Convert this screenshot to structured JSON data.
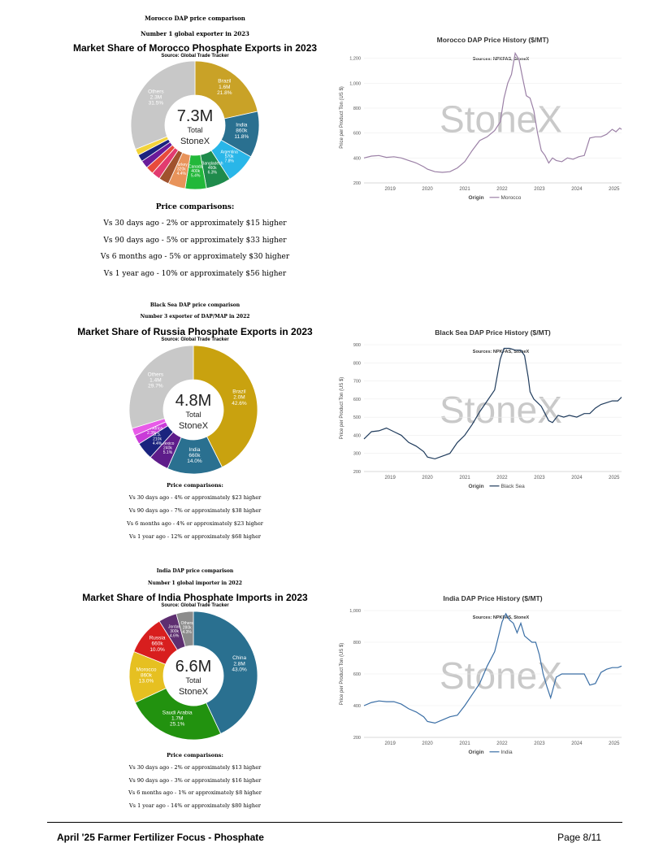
{
  "sections": [
    {
      "heading": "Morocco DAP price comparison",
      "subheading": "Number 1 global exporter in 2023",
      "comparisons_title": "Price comparisons:",
      "comparisons": [
        "Vs 30 days ago - 2% or approximately $15 higher",
        "Vs 90 days ago - 5% or approximately $33 higher",
        "Vs 6 months ago - 5% or approximately $30 higher",
        "Vs 1 year ago - 10% or approximately $56 higher"
      ]
    },
    {
      "heading": "Black Sea DAP price comparison",
      "subheading": "Number 3 exporter of DAP/MAP in 2022",
      "comparisons_title": "Price comparisons:",
      "comparisons": [
        "Vs 30 days ago - 4% or approximately $23 higher",
        "Vs 90 days ago - 7% or approximately $38 higher",
        "Vs 6 months ago - 4% or approximately $23 higher",
        "Vs 1 year ago - 12% or approximately $68 higher"
      ]
    },
    {
      "heading": "India DAP price comparison",
      "subheading": "Number 1 global importer in 2022",
      "comparisons_title": "Price comparisons:",
      "comparisons": [
        "Vs 30 days ago - 2% or approximately $13 higher",
        "Vs 90 days ago - 3% or approximately $16 higher",
        "Vs 6 months ago - 1% or approximately $8 higher",
        "Vs 1 year ago - 14% or approximately $80 higher"
      ]
    }
  ],
  "chart_data": [
    {
      "type": "pie",
      "title": "Market Share of Morocco Phosphate Exports in 2023",
      "subtitle": "Source: Global Trade Tracker",
      "center_value": "7.3M",
      "center_label": "Total",
      "center_brand": "StoneX",
      "slices": [
        {
          "name": "Brazil",
          "value": "1.6M",
          "percent": 21.8,
          "color": "#C9A227",
          "label_color": "#ffffff"
        },
        {
          "name": "India",
          "value": "860k",
          "percent": 11.8,
          "color": "#2A7090",
          "label_color": "#ffffff"
        },
        {
          "name": "Argentina",
          "value": "570k",
          "percent": 7.8,
          "color": "#29B6E8",
          "label_color": "#ffffff"
        },
        {
          "name": "Bangladesh",
          "value": "460k",
          "percent": 6.3,
          "color": "#1F8B4C",
          "label_color": "#ffffff"
        },
        {
          "name": "Canada",
          "value": "400k",
          "percent": 5.4,
          "color": "#22B83A",
          "label_color": "#ffffff"
        },
        {
          "name": "Turkey",
          "value": "320k",
          "percent": 4.4,
          "color": "#E8935A",
          "label_color": "#ffffff"
        },
        {
          "name": "",
          "value": "",
          "percent": 2.6,
          "color": "#A0522D",
          "label_color": "#ffffff"
        },
        {
          "name": "",
          "value": "",
          "percent": 2.2,
          "color": "#E23B6F",
          "label_color": "#ffffff"
        },
        {
          "name": "",
          "value": "",
          "percent": 2.0,
          "color": "#E84A3C",
          "label_color": "#ffffff"
        },
        {
          "name": "",
          "value": "",
          "percent": 2.0,
          "color": "#6A1B9A",
          "label_color": "#ffffff"
        },
        {
          "name": "",
          "value": "",
          "percent": 1.8,
          "color": "#1A237E",
          "label_color": "#ffffff"
        },
        {
          "name": "",
          "value": "",
          "percent": 1.6,
          "color": "#F2D33B",
          "label_color": "#ffffff"
        },
        {
          "name": "Others",
          "value": "2.3M",
          "percent": 31.5,
          "color": "#C8C8C8",
          "label_color": "#ffffff"
        }
      ]
    },
    {
      "type": "line",
      "title": "Morocco DAP Price History ($/MT)",
      "sources": "Sources: NPKFAS, StoneX",
      "ylabel": "Price per Product Ton (US $)",
      "xlabel": "Origin",
      "series_name": "Morocco",
      "color": "#9B80A6",
      "xlim": [
        2018.3,
        2025.2
      ],
      "ylim": [
        200,
        1250
      ],
      "yticks": [
        200,
        400,
        600,
        800,
        1000,
        1200
      ],
      "ytick_labels": [
        "200",
        "400",
        "600",
        "800",
        "1,000",
        "1,200"
      ],
      "xticks": [
        2019,
        2020,
        2021,
        2022,
        2023,
        2024,
        2025
      ],
      "x": [
        2018.3,
        2018.5,
        2018.7,
        2018.9,
        2019.1,
        2019.3,
        2019.5,
        2019.7,
        2019.9,
        2020.0,
        2020.2,
        2020.4,
        2020.6,
        2020.8,
        2021.0,
        2021.2,
        2021.4,
        2021.6,
        2021.8,
        2021.95,
        2022.05,
        2022.15,
        2022.25,
        2022.35,
        2022.45,
        2022.55,
        2022.65,
        2022.75,
        2022.85,
        2022.95,
        2023.05,
        2023.15,
        2023.25,
        2023.35,
        2023.45,
        2023.6,
        2023.75,
        2023.9,
        2024.05,
        2024.2,
        2024.35,
        2024.5,
        2024.65,
        2024.8,
        2024.95,
        2025.05,
        2025.15,
        2025.2
      ],
      "y": [
        400,
        415,
        420,
        405,
        410,
        400,
        380,
        360,
        330,
        310,
        290,
        285,
        290,
        320,
        370,
        460,
        540,
        570,
        620,
        690,
        880,
        1000,
        1070,
        1240,
        1190,
        1040,
        900,
        880,
        780,
        600,
        460,
        420,
        360,
        400,
        380,
        370,
        400,
        390,
        410,
        420,
        560,
        570,
        570,
        590,
        630,
        610,
        640,
        630
      ]
    },
    {
      "type": "pie",
      "title": "Market Share of Russia Phosphate Exports in 2023",
      "subtitle": "Source: Global Trade Tracker",
      "center_value": "4.8M",
      "center_label": "Total",
      "center_brand": "StoneX",
      "slices": [
        {
          "name": "Brazil",
          "value": "2.0M",
          "percent": 42.6,
          "color": "#C9A20F",
          "label_color": "#ffffff"
        },
        {
          "name": "India",
          "value": "660k",
          "percent": 14.0,
          "color": "#2A7090",
          "label_color": "#ffffff"
        },
        {
          "name": "Mexico",
          "value": "240k",
          "percent": 5.1,
          "color": "#5E1C8A",
          "label_color": "#ffffff"
        },
        {
          "name": "U.S.",
          "value": "210k",
          "percent": 4.4,
          "color": "#1A237E",
          "label_color": "#ffffff"
        },
        {
          "name": "South Africa",
          "value": "",
          "percent": 2.3,
          "color": "#C93BD8",
          "label_color": "#ffffff"
        },
        {
          "name": "",
          "value": "",
          "percent": 1.9,
          "color": "#E85AE8",
          "label_color": "#ffffff"
        },
        {
          "name": "Others",
          "value": "1.4M",
          "percent": 29.7,
          "color": "#C8C8C8",
          "label_color": "#ffffff"
        }
      ]
    },
    {
      "type": "line",
      "title": "Black Sea DAP Price History ($/MT)",
      "sources": "Sources: NPKFAS, StoneX",
      "ylabel": "Price per Product Ton (US $)",
      "xlabel": "Origin",
      "series_name": "Black Sea",
      "color": "#1F3B5C",
      "xlim": [
        2018.3,
        2025.2
      ],
      "ylim": [
        200,
        900
      ],
      "yticks": [
        200,
        300,
        400,
        500,
        600,
        700,
        800,
        900
      ],
      "ytick_labels": [
        "200",
        "300",
        "400",
        "500",
        "600",
        "700",
        "800",
        "900"
      ],
      "xticks": [
        2019,
        2020,
        2021,
        2022,
        2023,
        2024,
        2025
      ],
      "x": [
        2018.3,
        2018.5,
        2018.7,
        2018.9,
        2019.1,
        2019.3,
        2019.5,
        2019.7,
        2019.9,
        2020.0,
        2020.2,
        2020.4,
        2020.6,
        2020.8,
        2021.0,
        2021.2,
        2021.4,
        2021.6,
        2021.8,
        2021.95,
        2022.05,
        2022.2,
        2022.35,
        2022.5,
        2022.6,
        2022.7,
        2022.75,
        2022.85,
        2022.95,
        2023.05,
        2023.15,
        2023.25,
        2023.35,
        2023.5,
        2023.65,
        2023.8,
        2024.0,
        2024.2,
        2024.35,
        2024.5,
        2024.65,
        2024.8,
        2024.95,
        2025.1,
        2025.2
      ],
      "y": [
        380,
        420,
        425,
        440,
        420,
        400,
        360,
        340,
        310,
        280,
        270,
        285,
        300,
        360,
        400,
        460,
        530,
        590,
        650,
        820,
        880,
        880,
        870,
        870,
        840,
        720,
        640,
        600,
        580,
        560,
        520,
        480,
        470,
        510,
        500,
        510,
        500,
        520,
        520,
        550,
        570,
        580,
        590,
        590,
        610
      ]
    },
    {
      "type": "pie",
      "title": "Market Share of India Phosphate Imports in 2023",
      "subtitle": "Source: Global Trade Tracker",
      "center_value": "6.6M",
      "center_label": "Total",
      "center_brand": "StoneX",
      "slices": [
        {
          "name": "China",
          "value": "2.8M",
          "percent": 43.0,
          "color": "#2A7090",
          "label_color": "#ffffff"
        },
        {
          "name": "Saudi Arabia",
          "value": "1.7M",
          "percent": 25.1,
          "color": "#22920F",
          "label_color": "#ffffff"
        },
        {
          "name": "Morocco",
          "value": "860k",
          "percent": 13.0,
          "color": "#E6C021",
          "label_color": "#ffffff"
        },
        {
          "name": "Russia",
          "value": "660k",
          "percent": 10.0,
          "color": "#D81E1E",
          "label_color": "#ffffff"
        },
        {
          "name": "Jordan",
          "value": "300k",
          "percent": 4.6,
          "color": "#5E2E70",
          "label_color": "#ffffff"
        },
        {
          "name": "Others",
          "value": "280k",
          "percent": 4.3,
          "color": "#8C8C8C",
          "label_color": "#ffffff"
        }
      ]
    },
    {
      "type": "line",
      "title": "India DAP Price History ($/MT)",
      "sources": "Sources: NPKFAS, StoneX",
      "ylabel": "Price per Product Ton (US $)",
      "xlabel": "Origin",
      "series_name": "India",
      "color": "#3A6EA5",
      "xlim": [
        2018.3,
        2025.2
      ],
      "ylim": [
        200,
        1000
      ],
      "yticks": [
        200,
        400,
        600,
        800,
        1000
      ],
      "ytick_labels": [
        "200",
        "400",
        "600",
        "800",
        "1,000"
      ],
      "xticks": [
        2019,
        2020,
        2021,
        2022,
        2023,
        2024,
        2025
      ],
      "x": [
        2018.3,
        2018.5,
        2018.7,
        2018.9,
        2019.1,
        2019.3,
        2019.5,
        2019.7,
        2019.9,
        2020.0,
        2020.2,
        2020.4,
        2020.6,
        2020.8,
        2021.0,
        2021.2,
        2021.4,
        2021.6,
        2021.8,
        2022.0,
        2022.1,
        2022.2,
        2022.3,
        2022.4,
        2022.5,
        2022.6,
        2022.7,
        2022.8,
        2022.9,
        2023.0,
        2023.1,
        2023.2,
        2023.3,
        2023.45,
        2023.6,
        2023.8,
        2024.0,
        2024.2,
        2024.35,
        2024.5,
        2024.65,
        2024.8,
        2024.95,
        2025.1,
        2025.2
      ],
      "y": [
        400,
        420,
        430,
        425,
        425,
        410,
        380,
        360,
        330,
        300,
        290,
        310,
        330,
        340,
        400,
        470,
        540,
        650,
        740,
        930,
        980,
        940,
        920,
        860,
        920,
        840,
        820,
        800,
        800,
        720,
        600,
        520,
        450,
        580,
        600,
        600,
        600,
        600,
        530,
        540,
        610,
        630,
        640,
        640,
        650
      ]
    }
  ],
  "footer": {
    "left": "April '25 Farmer Fertilizer Focus - Phosphate",
    "right": "Page 8/11"
  }
}
